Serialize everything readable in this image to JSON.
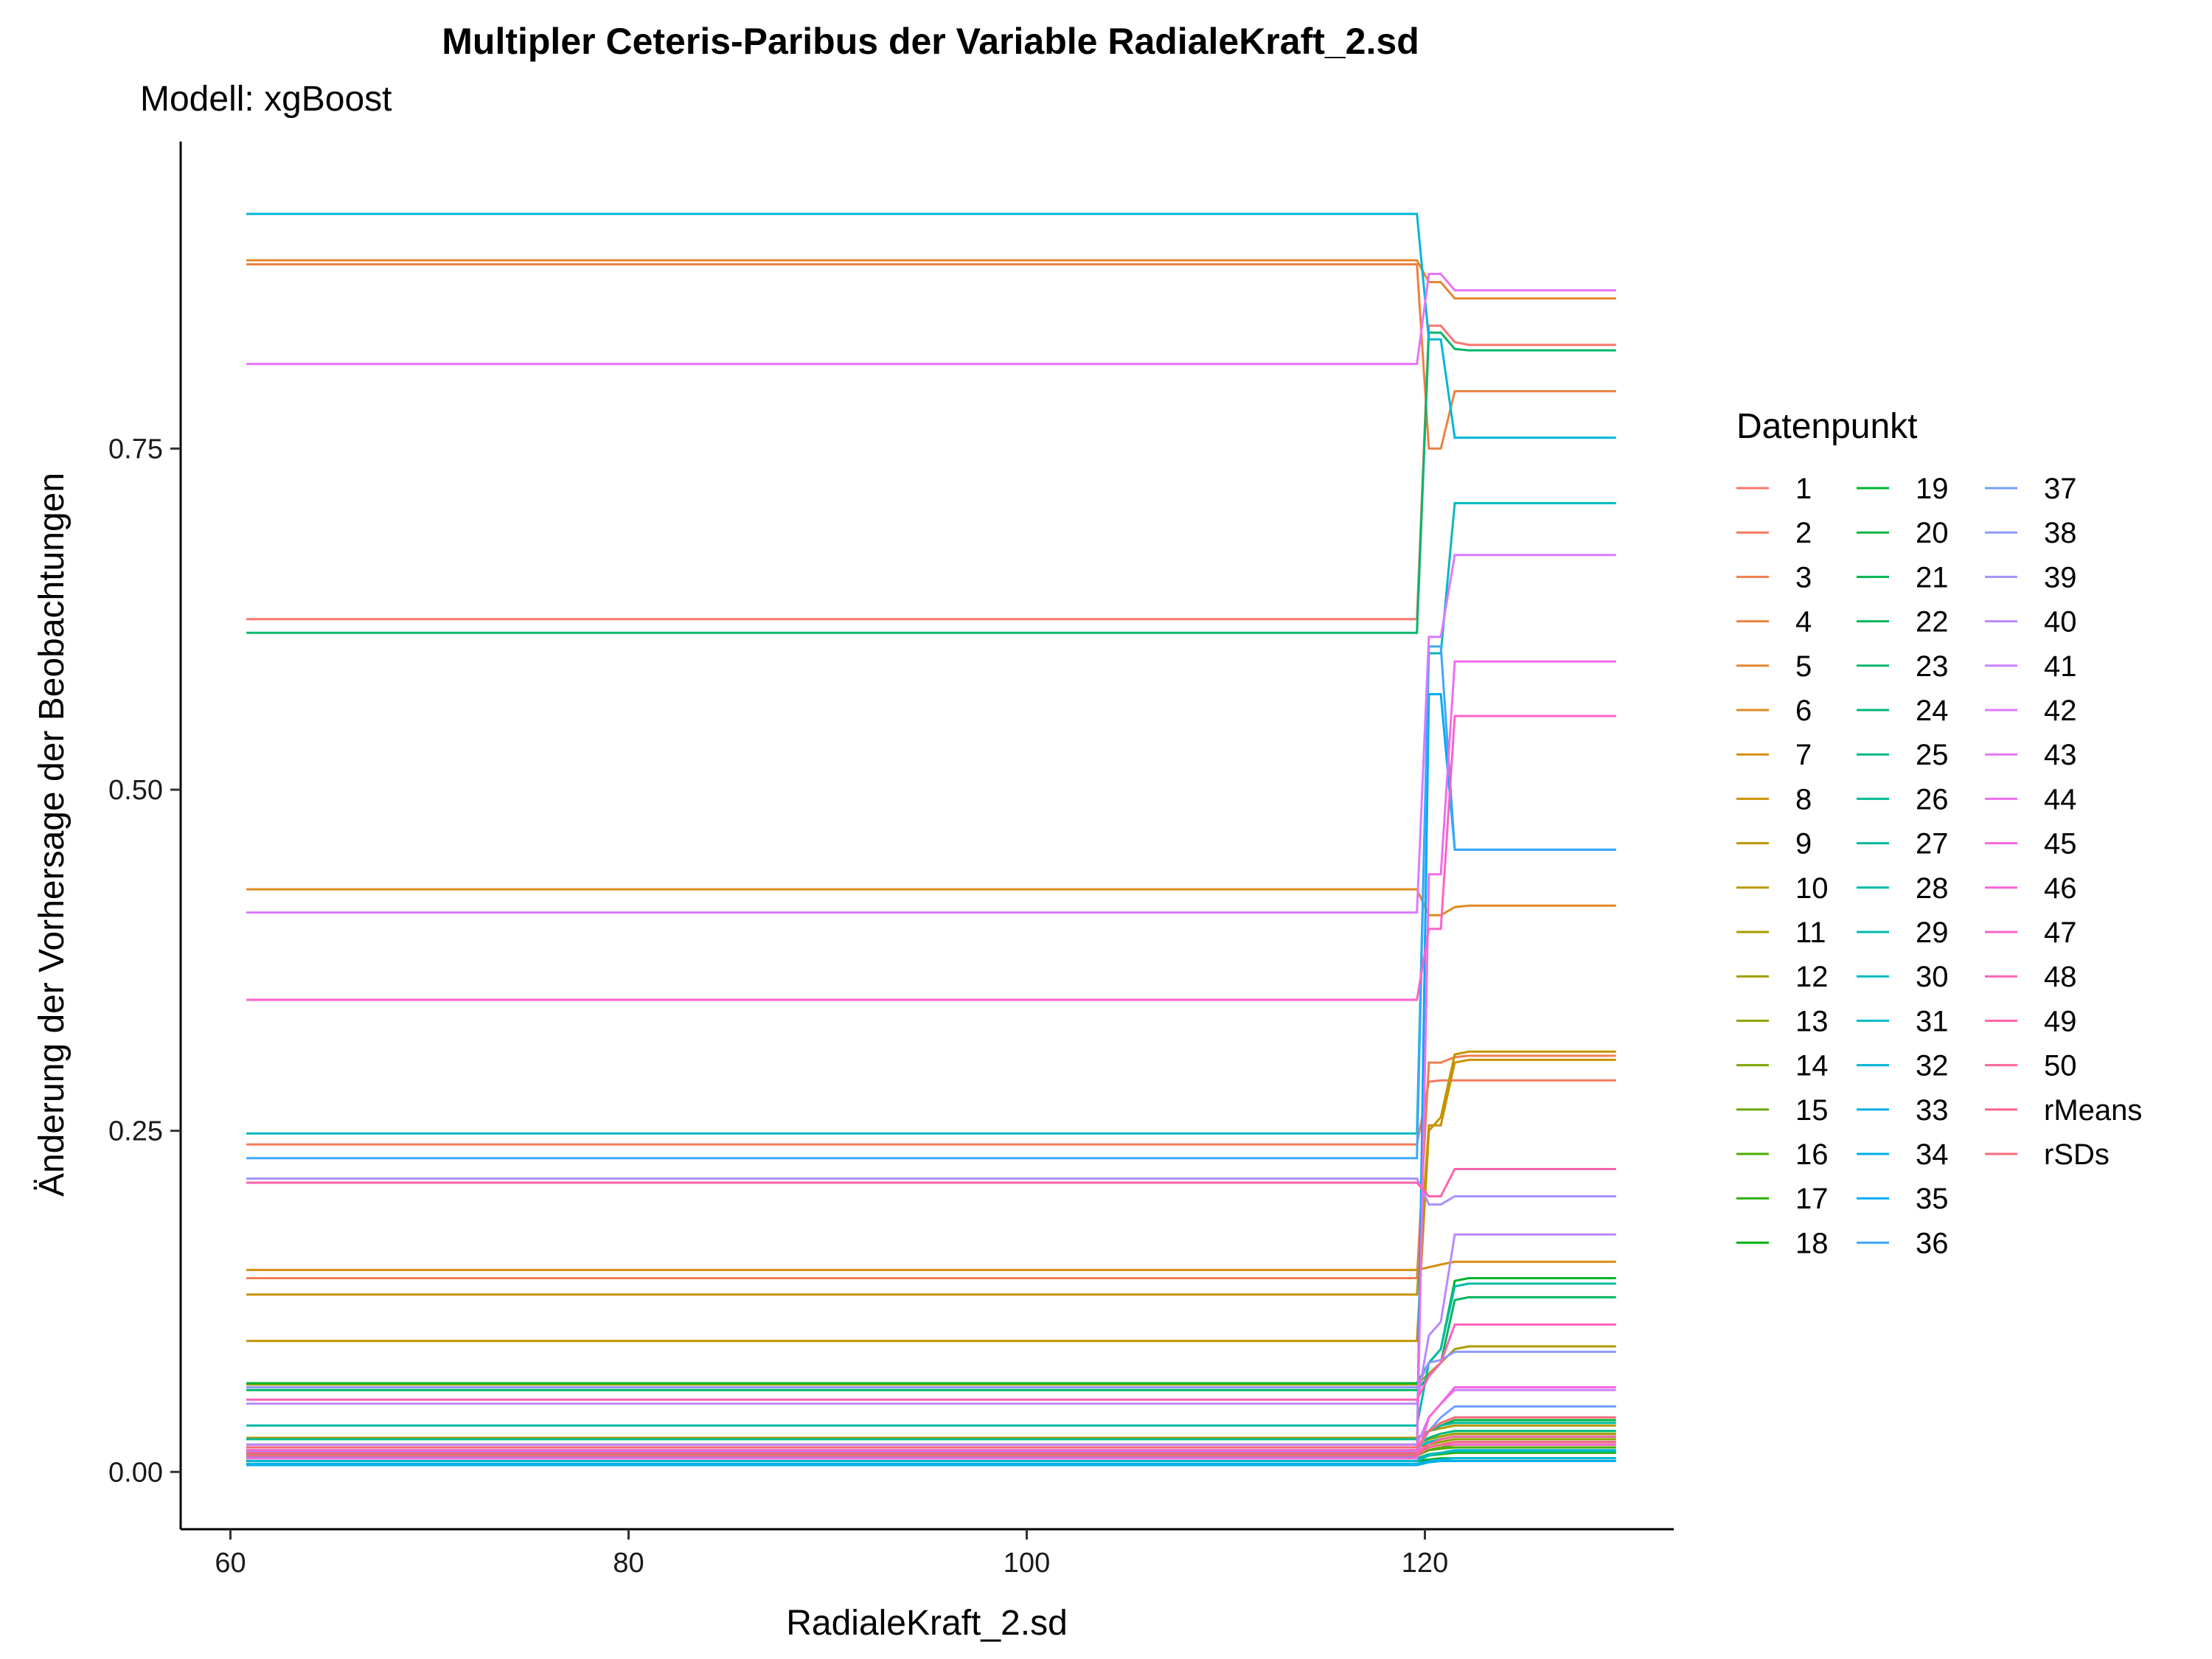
{
  "chart_data": {
    "type": "line",
    "title": "Multipler Ceteris-Paribus der Variable RadialeKraft_2.sd",
    "subtitle": "Modell: xgBoost",
    "xlabel": "RadialeKraft_2.sd",
    "ylabel": "Änderung der Vorhersage der Beobachtungen",
    "xlim": [
      57.5,
      132.5
    ],
    "ylim": [
      -0.042,
      0.975
    ],
    "x_ticks": [
      60,
      80,
      100,
      120
    ],
    "x_tick_labels": [
      "60",
      "80",
      "100",
      "120"
    ],
    "y_ticks": [
      0,
      0.25,
      0.5,
      0.75
    ],
    "y_tick_labels": [
      "0.00",
      "0.25",
      "0.50",
      "0.75"
    ],
    "x": [
      60.8,
      119.6,
      120.2,
      120.8,
      121.5,
      122.2,
      129.6
    ],
    "legend": {
      "title": "Datenpunkt",
      "placement": "right",
      "ncol": 3
    },
    "series": [
      {
        "name": "1",
        "color": "#F8766D",
        "values": [
          0.625,
          0.625,
          0.84,
          0.84,
          0.828,
          0.826,
          0.826
        ]
      },
      {
        "name": "2",
        "color": "#F47A5E",
        "values": [
          0.24,
          0.24,
          0.286,
          0.287,
          0.287,
          0.287,
          0.287
        ]
      },
      {
        "name": "3",
        "color": "#F07E4F",
        "values": [
          0.142,
          0.142,
          0.3,
          0.3,
          0.304,
          0.305,
          0.305
        ]
      },
      {
        "name": "4",
        "color": "#EB8240",
        "values": [
          0.885,
          0.885,
          0.75,
          0.75,
          0.792,
          0.792,
          0.792
        ]
      },
      {
        "name": "5",
        "color": "#E5862F",
        "values": [
          0.888,
          0.888,
          0.872,
          0.872,
          0.86,
          0.86,
          0.86
        ]
      },
      {
        "name": "6",
        "color": "#DD8A1E",
        "values": [
          0.427,
          0.427,
          0.408,
          0.408,
          0.414,
          0.415,
          0.415
        ]
      },
      {
        "name": "7",
        "color": "#D58E10",
        "values": [
          0.148,
          0.148,
          0.15,
          0.152,
          0.154,
          0.154,
          0.154
        ]
      },
      {
        "name": "8",
        "color": "#CC9105",
        "values": [
          0.13,
          0.13,
          0.254,
          0.254,
          0.3,
          0.302,
          0.302
        ]
      },
      {
        "name": "9",
        "color": "#C29500",
        "values": [
          0.096,
          0.096,
          0.25,
          0.26,
          0.306,
          0.308,
          0.308
        ]
      },
      {
        "name": "10",
        "color": "#B79800",
        "values": [
          0.025,
          0.025,
          0.03,
          0.032,
          0.034,
          0.034,
          0.034
        ]
      },
      {
        "name": "11",
        "color": "#AB9C00",
        "values": [
          0.064,
          0.064,
          0.072,
          0.08,
          0.09,
          0.092,
          0.092
        ]
      },
      {
        "name": "12",
        "color": "#9E9F00",
        "values": [
          0.02,
          0.02,
          0.024,
          0.026,
          0.028,
          0.028,
          0.028
        ]
      },
      {
        "name": "13",
        "color": "#8FA300",
        "values": [
          0.018,
          0.018,
          0.02,
          0.022,
          0.024,
          0.024,
          0.024
        ]
      },
      {
        "name": "14",
        "color": "#7DA600",
        "values": [
          0.015,
          0.015,
          0.018,
          0.02,
          0.022,
          0.022,
          0.022
        ]
      },
      {
        "name": "15",
        "color": "#68A800",
        "values": [
          0.013,
          0.013,
          0.016,
          0.018,
          0.02,
          0.02,
          0.02
        ]
      },
      {
        "name": "16",
        "color": "#4EAB00",
        "values": [
          0.012,
          0.012,
          0.016,
          0.017,
          0.018,
          0.018,
          0.018
        ]
      },
      {
        "name": "17",
        "color": "#2BAE00",
        "values": [
          0.01,
          0.01,
          0.012,
          0.013,
          0.014,
          0.014,
          0.014
        ]
      },
      {
        "name": "18",
        "color": "#00B012",
        "values": [
          0.008,
          0.008,
          0.009,
          0.01,
          0.01,
          0.01,
          0.01
        ]
      },
      {
        "name": "19",
        "color": "#00B22D",
        "values": [
          0.065,
          0.065,
          0.08,
          0.09,
          0.14,
          0.142,
          0.142
        ]
      },
      {
        "name": "20",
        "color": "#00B440",
        "values": [
          0.016,
          0.016,
          0.03,
          0.034,
          0.038,
          0.038,
          0.038
        ]
      },
      {
        "name": "21",
        "color": "#00B550",
        "values": [
          0.012,
          0.012,
          0.02,
          0.024,
          0.026,
          0.026,
          0.026
        ]
      },
      {
        "name": "22",
        "color": "#00B65E",
        "values": [
          0.06,
          0.06,
          0.07,
          0.08,
          0.126,
          0.128,
          0.128
        ]
      },
      {
        "name": "23",
        "color": "#00B76B",
        "values": [
          0.615,
          0.615,
          0.835,
          0.835,
          0.823,
          0.822,
          0.822
        ]
      },
      {
        "name": "24",
        "color": "#00B878",
        "values": [
          0.02,
          0.02,
          0.025,
          0.028,
          0.03,
          0.03,
          0.03
        ]
      },
      {
        "name": "25",
        "color": "#00B984",
        "values": [
          0.014,
          0.014,
          0.018,
          0.02,
          0.022,
          0.022,
          0.022
        ]
      },
      {
        "name": "26",
        "color": "#00BA90",
        "values": [
          0.01,
          0.01,
          0.013,
          0.014,
          0.015,
          0.015,
          0.015
        ]
      },
      {
        "name": "27",
        "color": "#00BA9C",
        "values": [
          0.024,
          0.024,
          0.03,
          0.034,
          0.036,
          0.036,
          0.036
        ]
      },
      {
        "name": "28",
        "color": "#00BAA8",
        "values": [
          0.034,
          0.034,
          0.08,
          0.09,
          0.136,
          0.138,
          0.138
        ]
      },
      {
        "name": "29",
        "color": "#00BAB4",
        "values": [
          0.018,
          0.018,
          0.022,
          0.024,
          0.026,
          0.026,
          0.026
        ]
      },
      {
        "name": "30",
        "color": "#00B9BF",
        "values": [
          0.248,
          0.248,
          0.6,
          0.6,
          0.71,
          0.71,
          0.71
        ]
      },
      {
        "name": "31",
        "color": "#00B8CB",
        "values": [
          0.008,
          0.008,
          0.012,
          0.014,
          0.016,
          0.016,
          0.016
        ]
      },
      {
        "name": "32",
        "color": "#00B6D6",
        "values": [
          0.922,
          0.922,
          0.83,
          0.83,
          0.758,
          0.758,
          0.758
        ]
      },
      {
        "name": "33",
        "color": "#00B3E1",
        "values": [
          0.006,
          0.006,
          0.008,
          0.009,
          0.01,
          0.01,
          0.01
        ]
      },
      {
        "name": "34",
        "color": "#00AFEB",
        "values": [
          0.005,
          0.005,
          0.007,
          0.008,
          0.008,
          0.008,
          0.008
        ]
      },
      {
        "name": "35",
        "color": "#00ABF4",
        "values": [
          0.011,
          0.011,
          0.57,
          0.57,
          0.456,
          0.456,
          0.456
        ]
      },
      {
        "name": "36",
        "color": "#3FA6FC",
        "values": [
          0.23,
          0.23,
          0.605,
          0.605,
          0.456,
          0.456,
          0.456
        ]
      },
      {
        "name": "37",
        "color": "#6FA0FF",
        "values": [
          0.015,
          0.015,
          0.03,
          0.04,
          0.048,
          0.048,
          0.048
        ]
      },
      {
        "name": "38",
        "color": "#8E99FF",
        "values": [
          0.062,
          0.062,
          0.08,
          0.082,
          0.088,
          0.088,
          0.088
        ]
      },
      {
        "name": "39",
        "color": "#A691FF",
        "values": [
          0.215,
          0.215,
          0.196,
          0.196,
          0.202,
          0.202,
          0.202
        ]
      },
      {
        "name": "40",
        "color": "#BA8AFF",
        "values": [
          0.05,
          0.05,
          0.1,
          0.11,
          0.174,
          0.174,
          0.174
        ]
      },
      {
        "name": "41",
        "color": "#CC82FF",
        "values": [
          0.02,
          0.02,
          0.04,
          0.05,
          0.06,
          0.06,
          0.06
        ]
      },
      {
        "name": "42",
        "color": "#DB7AFF",
        "values": [
          0.41,
          0.41,
          0.612,
          0.612,
          0.672,
          0.672,
          0.672
        ]
      },
      {
        "name": "43",
        "color": "#E773F8",
        "values": [
          0.812,
          0.812,
          0.878,
          0.878,
          0.866,
          0.866,
          0.866
        ]
      },
      {
        "name": "44",
        "color": "#F06CEE",
        "values": [
          0.012,
          0.012,
          0.438,
          0.438,
          0.594,
          0.594,
          0.594
        ]
      },
      {
        "name": "45",
        "color": "#F766E3",
        "values": [
          0.01,
          0.01,
          0.04,
          0.05,
          0.062,
          0.062,
          0.062
        ]
      },
      {
        "name": "46",
        "color": "#FC63D6",
        "values": [
          0.016,
          0.016,
          0.018,
          0.02,
          0.02,
          0.02,
          0.02
        ]
      },
      {
        "name": "47",
        "color": "#FF61C9",
        "values": [
          0.346,
          0.346,
          0.398,
          0.398,
          0.554,
          0.554,
          0.554
        ]
      },
      {
        "name": "48",
        "color": "#FF61BB",
        "values": [
          0.053,
          0.053,
          0.07,
          0.08,
          0.108,
          0.108,
          0.108
        ]
      },
      {
        "name": "49",
        "color": "#FF62AB",
        "values": [
          0.212,
          0.212,
          0.202,
          0.202,
          0.222,
          0.222,
          0.222
        ]
      },
      {
        "name": "50",
        "color": "#FF649C",
        "values": [
          0.014,
          0.014,
          0.02,
          0.024,
          0.026,
          0.026,
          0.026
        ]
      },
      {
        "name": "rMeans",
        "color": "#FE678B",
        "values": [
          0.012,
          0.012,
          0.018,
          0.02,
          0.022,
          0.022,
          0.022
        ]
      },
      {
        "name": "rSDs",
        "color": "#FA6B7A",
        "values": [
          0.018,
          0.018,
          0.03,
          0.036,
          0.04,
          0.04,
          0.04
        ]
      }
    ]
  }
}
